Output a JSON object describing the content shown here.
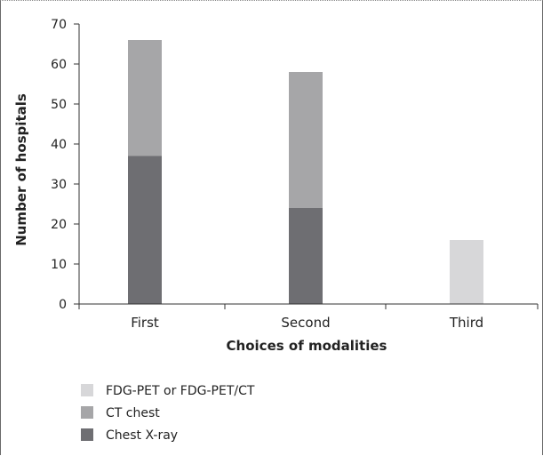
{
  "chart_data": {
    "type": "bar",
    "stacked": true,
    "title": "",
    "xlabel": "Choices of modalities",
    "ylabel": "Number of hospitals",
    "ylim": [
      0,
      70
    ],
    "yticks": [
      0,
      10,
      20,
      30,
      40,
      50,
      60,
      70
    ],
    "categories": [
      "First",
      "Second",
      "Third"
    ],
    "series": [
      {
        "name": "Chest X-ray",
        "color": "#6e6e72",
        "values": [
          37,
          24,
          0
        ]
      },
      {
        "name": "CT chest",
        "color": "#a6a6a8",
        "values": [
          29,
          34,
          0
        ]
      },
      {
        "name": "FDG-PET or FDG-PET/CT",
        "color": "#d7d7d9",
        "values": [
          0,
          0,
          16
        ]
      }
    ],
    "legend": {
      "placement": "bottom-left",
      "order": [
        "FDG-PET or FDG-PET/CT",
        "CT chest",
        "Chest X-ray"
      ]
    },
    "grid": false
  }
}
